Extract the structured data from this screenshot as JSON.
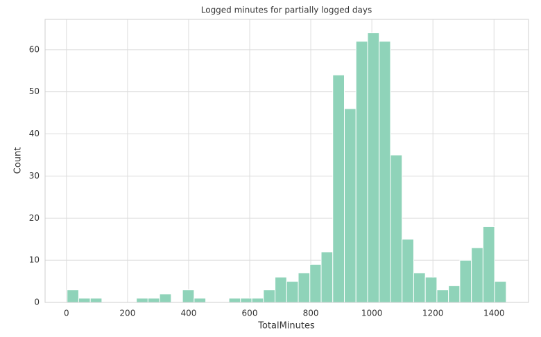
{
  "chart_data": {
    "type": "histogram",
    "title": "Logged minutes for partially logged days",
    "x_label": "TotalMinutes",
    "y_label": "Count",
    "bins": [
      2,
      40,
      78,
      116,
      153,
      191,
      229,
      267,
      305,
      343,
      380,
      418,
      456,
      494,
      532,
      570,
      607,
      645,
      683,
      721,
      759,
      797,
      834,
      872,
      910,
      948,
      986,
      1024,
      1061,
      1099,
      1137,
      1175,
      1213,
      1251,
      1288,
      1326,
      1364,
      1402,
      1440
    ],
    "values": [
      3,
      1,
      1,
      0,
      0,
      0,
      1,
      1,
      2,
      0,
      3,
      1,
      0,
      0,
      1,
      1,
      1,
      3,
      6,
      5,
      7,
      9,
      12,
      54,
      46,
      62,
      64,
      62,
      35,
      15,
      7,
      6,
      3,
      4,
      10,
      13,
      18,
      5
    ],
    "color": "#8fd3b9",
    "xlim": [
      -70,
      1513
    ],
    "ylim": [
      0,
      67.2
    ],
    "xticks": [
      0,
      200,
      400,
      600,
      800,
      1000,
      1200,
      1400
    ],
    "yticks": [
      0,
      10,
      20,
      30,
      40,
      50,
      60
    ],
    "grid": true
  }
}
